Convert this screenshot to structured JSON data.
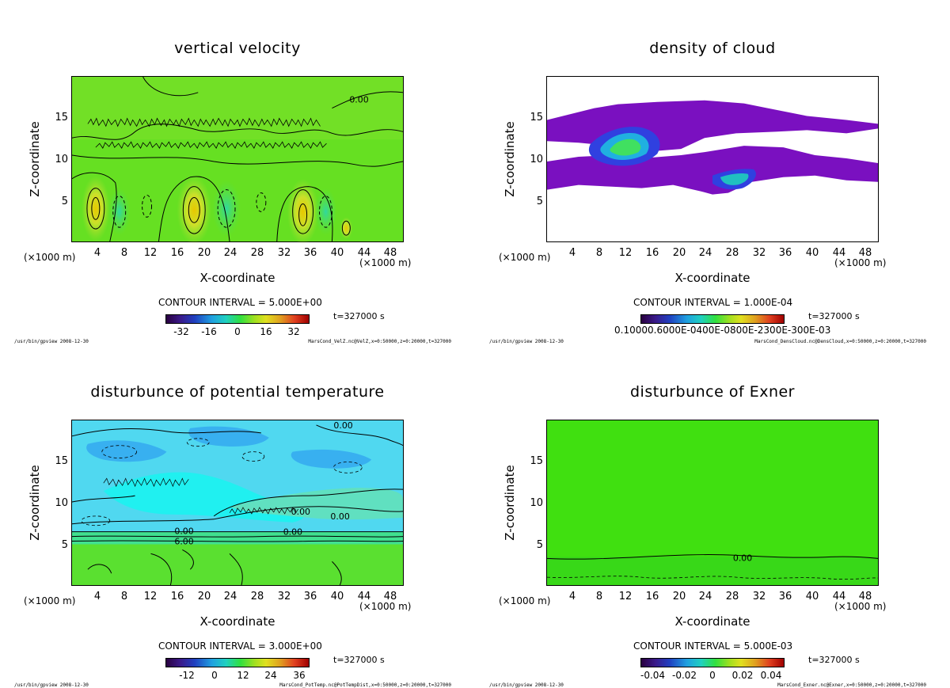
{
  "chart_data": [
    {
      "type": "heatmap",
      "title": "vertical velocity",
      "xlabel": "X-coordinate",
      "ylabel": "Z-coordinate",
      "x_unit_left": "(×1000 m)",
      "x_unit_right": "(×1000 m)",
      "xlim": [
        0,
        50
      ],
      "ylim": [
        0,
        20
      ],
      "xticks": [
        "4",
        "8",
        "12",
        "16",
        "20",
        "24",
        "28",
        "32",
        "36",
        "40",
        "44",
        "48"
      ],
      "yticks": [
        "5",
        "10",
        "15"
      ],
      "contour_interval": "CONTOUR INTERVAL = 5.000E+00",
      "time": "t=327000 s",
      "colorbar_ticks": [
        "-32",
        "-16",
        "0",
        "16",
        "32"
      ],
      "contour_labels": [
        "0.00"
      ],
      "footer_left": "/usr/bin/gpview 2008-12-30",
      "footer_right": "MarsCond_VelZ.nc@VelZ,x=0:50000,z=0:20000,t=327000"
    },
    {
      "type": "heatmap",
      "title": "density of cloud",
      "xlabel": "X-coordinate",
      "ylabel": "Z-coordinate",
      "x_unit_left": "(×1000 m)",
      "x_unit_right": "(×1000 m)",
      "xlim": [
        0,
        50
      ],
      "ylim": [
        0,
        20
      ],
      "xticks": [
        "4",
        "8",
        "12",
        "16",
        "20",
        "24",
        "28",
        "32",
        "36",
        "40",
        "44",
        "48"
      ],
      "yticks": [
        "5",
        "10",
        "15"
      ],
      "contour_interval": "CONTOUR INTERVAL = 1.000E-04",
      "time": "t=327000 s",
      "colorbar_label_text": "0.10000.6000E-0400E-0800E-2300E-300E-03",
      "footer_left": "/usr/bin/gpview 2008-12-30",
      "footer_right": "MarsCond_DensCloud.nc@DensCloud,x=0:50000,z=0:20000,t=327000"
    },
    {
      "type": "heatmap",
      "title": "disturbunce of potential temperature",
      "xlabel": "X-coordinate",
      "ylabel": "Z-coordinate",
      "x_unit_left": "(×1000 m)",
      "x_unit_right": "(×1000 m)",
      "xlim": [
        0,
        50
      ],
      "ylim": [
        0,
        20
      ],
      "xticks": [
        "4",
        "8",
        "12",
        "16",
        "20",
        "24",
        "28",
        "32",
        "36",
        "40",
        "44",
        "48"
      ],
      "yticks": [
        "5",
        "10",
        "15"
      ],
      "contour_interval": "CONTOUR INTERVAL = 3.000E+00",
      "time": "t=327000 s",
      "colorbar_ticks": [
        "-12",
        "0",
        "12",
        "24",
        "36"
      ],
      "contour_labels": [
        "0.00",
        "0.00",
        "0.00",
        "0.00",
        "6.00",
        "0.00"
      ],
      "footer_left": "/usr/bin/gpview 2008-12-30",
      "footer_right": "MarsCond_PotTemp.nc@PotTempDist,x=0:50000,z=0:20000,t=327000"
    },
    {
      "type": "heatmap",
      "title": "disturbunce of Exner",
      "xlabel": "X-coordinate",
      "ylabel": "Z-coordinate",
      "x_unit_left": "(×1000 m)",
      "x_unit_right": "(×1000 m)",
      "xlim": [
        0,
        50
      ],
      "ylim": [
        0,
        20
      ],
      "xticks": [
        "4",
        "8",
        "12",
        "16",
        "20",
        "24",
        "28",
        "32",
        "36",
        "40",
        "44",
        "48"
      ],
      "yticks": [
        "5",
        "10",
        "15"
      ],
      "contour_interval": "CONTOUR INTERVAL = 5.000E-03",
      "time": "t=327000 s",
      "colorbar_ticks": [
        "-0.04",
        "-0.02",
        "0",
        "0.02",
        "0.04"
      ],
      "contour_labels": [
        "0.00"
      ],
      "footer_left": "/usr/bin/gpview 2008-12-30",
      "footer_right": "MarsCond_Exner.nc@Exner,x=0:50000,z=0:20000,t=327000"
    }
  ]
}
